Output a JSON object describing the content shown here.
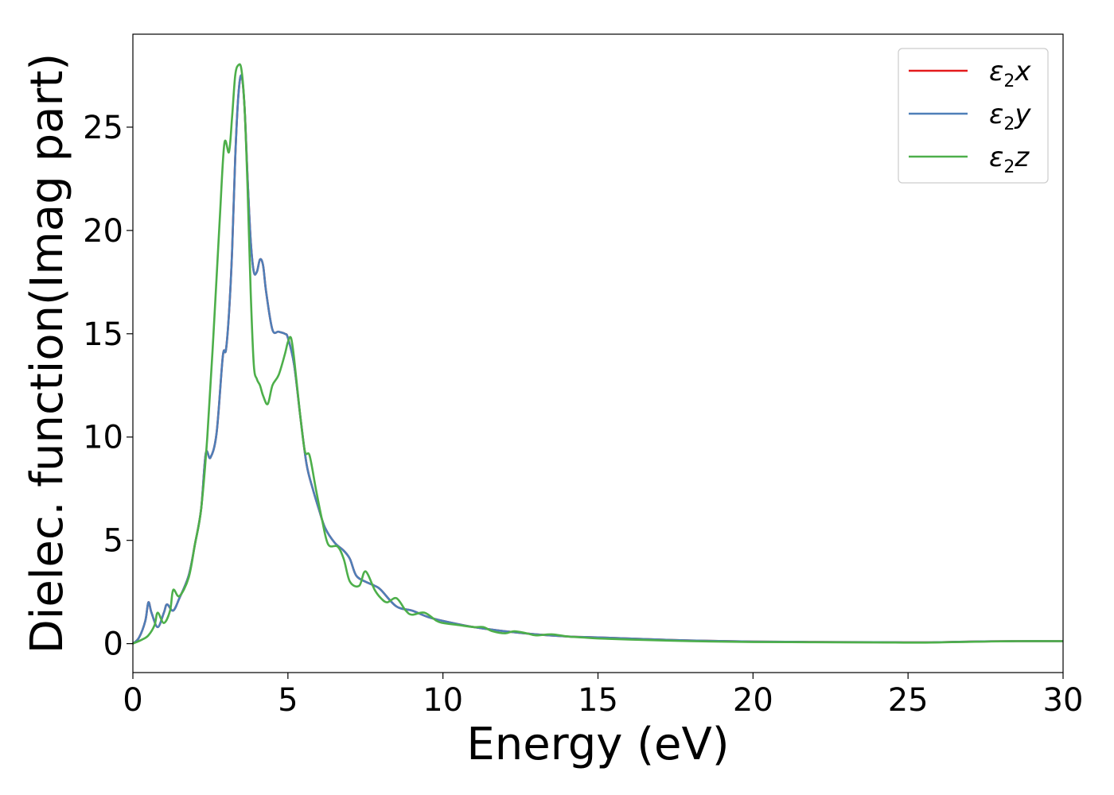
{
  "chart_data": {
    "type": "line",
    "title": "",
    "xlabel": "Energy (eV)",
    "ylabel": "Dielec. function(Imag part)",
    "xlim": [
      0,
      30
    ],
    "ylim": [
      -1.4,
      29.5
    ],
    "xticks": [
      0,
      5,
      10,
      15,
      20,
      25,
      30
    ],
    "yticks": [
      0,
      5,
      10,
      15,
      20,
      25
    ],
    "grid": false,
    "legend_position": "top-right",
    "series": [
      {
        "name": "ε2x",
        "legend_base": "ε",
        "legend_sub": "2",
        "legend_var": "x",
        "color": "#e41a1c",
        "x": [
          0,
          0.2,
          0.4,
          0.5,
          0.6,
          0.8,
          1.0,
          1.1,
          1.3,
          1.5,
          1.8,
          2.0,
          2.2,
          2.35,
          2.5,
          2.7,
          2.9,
          3.0,
          3.1,
          3.2,
          3.3,
          3.4,
          3.5,
          3.6,
          3.7,
          3.8,
          3.9,
          4.0,
          4.1,
          4.2,
          4.3,
          4.5,
          4.7,
          4.9,
          5.0,
          5.2,
          5.4,
          5.6,
          5.8,
          6.0,
          6.2,
          6.5,
          6.8,
          7.0,
          7.2,
          7.5,
          7.8,
          8.0,
          8.5,
          9.0,
          9.5,
          10.0,
          11.0,
          12.0,
          13.0,
          14.0,
          15.0,
          16.0,
          18.0,
          20.0,
          22.0,
          24.0,
          25.5,
          27.0,
          28.5,
          30.0
        ],
        "values": [
          0,
          0.3,
          1.1,
          2.0,
          1.5,
          0.8,
          1.5,
          1.9,
          1.6,
          2.2,
          3.3,
          4.8,
          6.5,
          9.2,
          9.0,
          10.2,
          13.9,
          14.2,
          16.0,
          19.0,
          23.5,
          26.5,
          27.5,
          26.0,
          22.5,
          19.5,
          18.0,
          18.0,
          18.6,
          18.3,
          17.0,
          15.2,
          15.1,
          15.0,
          14.8,
          13.5,
          11.0,
          8.7,
          7.5,
          6.5,
          5.6,
          4.9,
          4.5,
          4.1,
          3.3,
          3.0,
          2.8,
          2.6,
          1.8,
          1.6,
          1.3,
          1.1,
          0.8,
          0.6,
          0.45,
          0.35,
          0.3,
          0.25,
          0.15,
          0.1,
          0.08,
          0.07,
          0.06,
          0.1,
          0.12,
          0.12
        ]
      },
      {
        "name": "ε2y",
        "legend_base": "ε",
        "legend_sub": "2",
        "legend_var": "y",
        "color": "#4e7fb8",
        "x": [
          0,
          0.2,
          0.4,
          0.5,
          0.6,
          0.8,
          1.0,
          1.1,
          1.3,
          1.5,
          1.8,
          2.0,
          2.2,
          2.35,
          2.5,
          2.7,
          2.9,
          3.0,
          3.1,
          3.2,
          3.3,
          3.4,
          3.5,
          3.6,
          3.7,
          3.8,
          3.9,
          4.0,
          4.1,
          4.2,
          4.3,
          4.5,
          4.7,
          4.9,
          5.0,
          5.2,
          5.4,
          5.6,
          5.8,
          6.0,
          6.2,
          6.5,
          6.8,
          7.0,
          7.2,
          7.5,
          7.8,
          8.0,
          8.5,
          9.0,
          9.5,
          10.0,
          11.0,
          12.0,
          13.0,
          14.0,
          15.0,
          16.0,
          18.0,
          20.0,
          22.0,
          24.0,
          25.5,
          27.0,
          28.5,
          30.0
        ],
        "values": [
          0,
          0.3,
          1.1,
          2.0,
          1.5,
          0.8,
          1.5,
          1.9,
          1.6,
          2.2,
          3.3,
          4.8,
          6.5,
          9.2,
          9.0,
          10.2,
          13.9,
          14.2,
          16.0,
          19.0,
          23.5,
          26.5,
          27.5,
          26.0,
          22.5,
          19.5,
          18.0,
          18.0,
          18.6,
          18.3,
          17.0,
          15.2,
          15.1,
          15.0,
          14.8,
          13.5,
          11.0,
          8.7,
          7.5,
          6.5,
          5.6,
          4.9,
          4.5,
          4.1,
          3.3,
          3.0,
          2.8,
          2.6,
          1.8,
          1.6,
          1.3,
          1.1,
          0.8,
          0.6,
          0.45,
          0.35,
          0.3,
          0.25,
          0.15,
          0.1,
          0.08,
          0.07,
          0.06,
          0.1,
          0.12,
          0.12
        ]
      },
      {
        "name": "ε2z",
        "legend_base": "ε",
        "legend_sub": "2",
        "legend_var": "z",
        "color": "#4daf4a",
        "x": [
          0,
          0.3,
          0.5,
          0.7,
          0.8,
          1.0,
          1.2,
          1.3,
          1.5,
          1.8,
          2.0,
          2.2,
          2.4,
          2.6,
          2.8,
          2.95,
          3.1,
          3.2,
          3.3,
          3.4,
          3.5,
          3.6,
          3.7,
          3.8,
          3.9,
          4.0,
          4.1,
          4.2,
          4.35,
          4.5,
          4.7,
          4.9,
          5.0,
          5.1,
          5.2,
          5.4,
          5.55,
          5.7,
          5.9,
          6.1,
          6.3,
          6.6,
          6.8,
          7.0,
          7.3,
          7.5,
          7.8,
          8.0,
          8.2,
          8.5,
          8.8,
          9.0,
          9.4,
          9.8,
          10.0,
          10.5,
          11.0,
          11.3,
          11.6,
          12.0,
          12.3,
          12.7,
          13.0,
          13.5,
          14.0,
          14.5,
          15.0,
          16.0,
          18.0,
          20.0,
          22.0,
          24.0,
          25.5,
          27.0,
          28.5,
          30.0
        ],
        "values": [
          0,
          0.2,
          0.4,
          0.9,
          1.5,
          1.0,
          1.6,
          2.6,
          2.3,
          3.2,
          4.8,
          6.5,
          10.0,
          15.0,
          20.5,
          24.2,
          23.8,
          25.5,
          27.5,
          28.0,
          27.8,
          26.0,
          22.0,
          17.0,
          13.5,
          12.8,
          12.5,
          12.0,
          11.6,
          12.5,
          13.0,
          14.0,
          14.6,
          14.8,
          13.8,
          11.0,
          9.3,
          9.1,
          7.5,
          6.0,
          4.8,
          4.7,
          4.1,
          3.0,
          2.8,
          3.5,
          2.6,
          2.2,
          2.0,
          2.2,
          1.6,
          1.4,
          1.5,
          1.1,
          1.0,
          0.9,
          0.8,
          0.8,
          0.6,
          0.5,
          0.6,
          0.5,
          0.4,
          0.45,
          0.35,
          0.3,
          0.25,
          0.2,
          0.12,
          0.08,
          0.07,
          0.06,
          0.05,
          0.09,
          0.12,
          0.12
        ]
      }
    ]
  }
}
